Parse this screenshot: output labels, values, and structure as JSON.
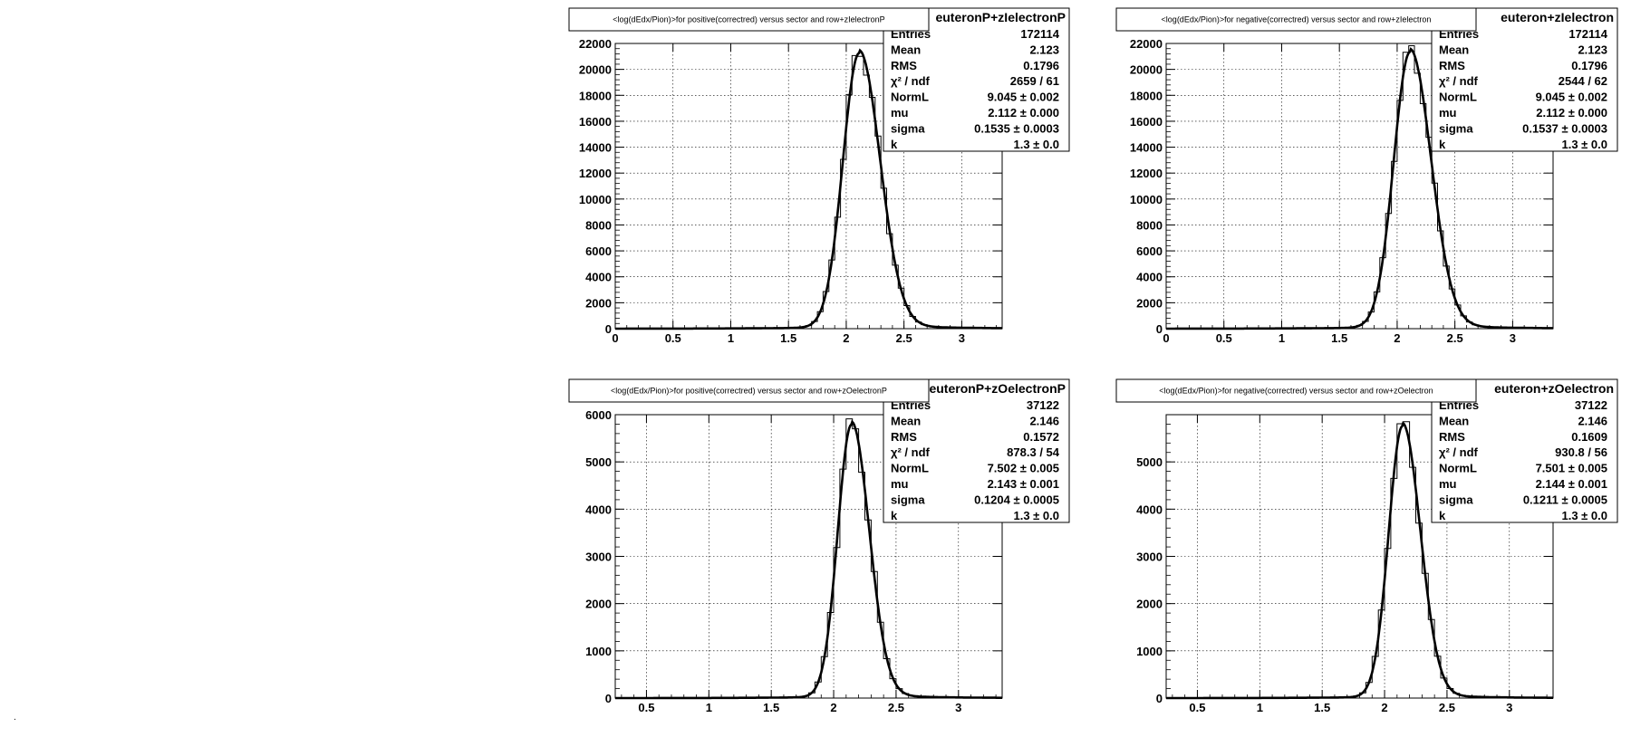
{
  "page": {
    "colors": {
      "background": "#ffffff",
      "frame": "#000000",
      "grid": "#000000",
      "curve": "#000000"
    },
    "stray_mark": "."
  },
  "chart_data": [
    {
      "type": "histogram",
      "title": "<log(dEdx/Pion)>for positive(correctred) versus sector and row+zIelectronP",
      "xlabel": "",
      "ylabel": "",
      "xlim": [
        0,
        3.35
      ],
      "ylim": [
        0,
        22000
      ],
      "xticks": [
        0,
        0.5,
        1,
        1.5,
        2,
        2.5,
        3
      ],
      "xtick_labels": [
        "0",
        "0.5",
        "1",
        "1.5",
        "2",
        "2.5",
        "3"
      ],
      "yticks": [
        0,
        2000,
        4000,
        6000,
        8000,
        10000,
        12000,
        14000,
        16000,
        18000,
        20000,
        22000
      ],
      "ytick_labels": [
        "0",
        "2000",
        "4000",
        "6000",
        "8000",
        "10000",
        "12000",
        "14000",
        "16000",
        "18000",
        "20000",
        "22000"
      ],
      "grid": true,
      "peak": {
        "x": 2.112,
        "y": 21100,
        "sigma": 0.1535
      },
      "stats": {
        "name": "euteronP+zIelectronP",
        "rows": [
          {
            "label": "Entries",
            "value": "172114"
          },
          {
            "label": "Mean",
            "value": "2.123"
          },
          {
            "label": "RMS",
            "value": "0.1796"
          },
          {
            "label": "χ² / ndf",
            "value": "2659 / 61"
          },
          {
            "label": "NormL",
            "value": "9.045 ± 0.002"
          },
          {
            "label": "mu",
            "value": "2.112 ± 0.000"
          },
          {
            "label": "sigma",
            "value": "0.1535 ± 0.0003"
          },
          {
            "label": "k",
            "value": "1.3 ± 0.0"
          }
        ]
      }
    },
    {
      "type": "histogram",
      "title": "<log(dEdx/Pion)>for negative(correctred) versus sector and row+zIelectron",
      "xlabel": "",
      "ylabel": "",
      "xlim": [
        0,
        3.35
      ],
      "ylim": [
        0,
        22000
      ],
      "xticks": [
        0,
        0.5,
        1,
        1.5,
        2,
        2.5,
        3
      ],
      "xtick_labels": [
        "0",
        "0.5",
        "1",
        "1.5",
        "2",
        "2.5",
        "3"
      ],
      "yticks": [
        0,
        2000,
        4000,
        6000,
        8000,
        10000,
        12000,
        14000,
        16000,
        18000,
        20000,
        22000
      ],
      "ytick_labels": [
        "0",
        "2000",
        "4000",
        "6000",
        "8000",
        "10000",
        "12000",
        "14000",
        "16000",
        "18000",
        "20000",
        "22000"
      ],
      "grid": true,
      "peak": {
        "x": 2.112,
        "y": 21200,
        "sigma": 0.1537
      },
      "stats": {
        "name": "euteron+zIelectron",
        "rows": [
          {
            "label": "Entries",
            "value": "172114"
          },
          {
            "label": "Mean",
            "value": "2.123"
          },
          {
            "label": "RMS",
            "value": "0.1796"
          },
          {
            "label": "χ² / ndf",
            "value": "2544 / 62"
          },
          {
            "label": "NormL",
            "value": "9.045 ± 0.002"
          },
          {
            "label": "mu",
            "value": "2.112 ± 0.000"
          },
          {
            "label": "sigma",
            "value": "0.1537 ± 0.0003"
          },
          {
            "label": "k",
            "value": "1.3 ± 0.0"
          }
        ]
      }
    },
    {
      "type": "histogram",
      "title": "<log(dEdx/Pion)>for positive(correctred) versus sector and row+zOelectronP",
      "xlabel": "",
      "ylabel": "",
      "xlim": [
        0.25,
        3.35
      ],
      "ylim": [
        0,
        6000
      ],
      "xticks": [
        0.5,
        1,
        1.5,
        2,
        2.5,
        3
      ],
      "xtick_labels": [
        "0.5",
        "1",
        "1.5",
        "2",
        "2.5",
        "3"
      ],
      "yticks": [
        0,
        1000,
        2000,
        3000,
        4000,
        5000,
        6000
      ],
      "ytick_labels": [
        "0",
        "1000",
        "2000",
        "3000",
        "4000",
        "5000",
        "6000"
      ],
      "grid": true,
      "peak": {
        "x": 2.143,
        "y": 5750,
        "sigma": 0.1204
      },
      "stats": {
        "name": "euteronP+zOelectronP",
        "rows": [
          {
            "label": "Entries",
            "value": "37122"
          },
          {
            "label": "Mean",
            "value": "2.146"
          },
          {
            "label": "RMS",
            "value": "0.1572"
          },
          {
            "label": "χ² / ndf",
            "value": "878.3 / 54"
          },
          {
            "label": "NormL",
            "value": "7.502 ± 0.005"
          },
          {
            "label": "mu",
            "value": "2.143 ± 0.001"
          },
          {
            "label": "sigma",
            "value": "0.1204 ± 0.0005"
          },
          {
            "label": "k",
            "value": "1.3 ± 0.0"
          }
        ]
      }
    },
    {
      "type": "histogram",
      "title": "<log(dEdx/Pion)>for negative(correctred) versus sector and row+zOelectron",
      "xlabel": "",
      "ylabel": "",
      "xlim": [
        0.25,
        3.35
      ],
      "ylim": [
        0,
        6000
      ],
      "xticks": [
        0.5,
        1,
        1.5,
        2,
        2.5,
        3
      ],
      "xtick_labels": [
        "0.5",
        "1",
        "1.5",
        "2",
        "2.5",
        "3"
      ],
      "yticks": [
        0,
        1000,
        2000,
        3000,
        4000,
        5000
      ],
      "ytick_labels": [
        "0",
        "1000",
        "2000",
        "3000",
        "4000",
        "5000"
      ],
      "grid": true,
      "peak": {
        "x": 2.144,
        "y": 5720,
        "sigma": 0.1211
      },
      "stats": {
        "name": "euteron+zOelectron",
        "rows": [
          {
            "label": "Entries",
            "value": "37122"
          },
          {
            "label": "Mean",
            "value": "2.146"
          },
          {
            "label": "RMS",
            "value": "0.1609"
          },
          {
            "label": "χ² / ndf",
            "value": "930.8 / 56"
          },
          {
            "label": "NormL",
            "value": "7.501 ± 0.005"
          },
          {
            "label": "mu",
            "value": "2.144 ± 0.001"
          },
          {
            "label": "sigma",
            "value": "0.1211 ± 0.0005"
          },
          {
            "label": "k",
            "value": "1.3 ± 0.0"
          }
        ]
      }
    }
  ]
}
